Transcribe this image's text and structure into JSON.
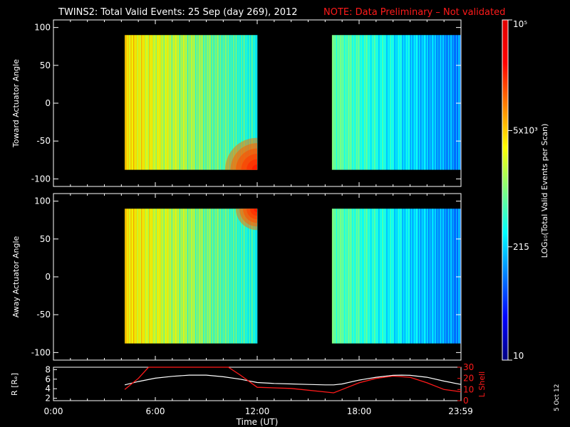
{
  "header": {
    "title": "TWINS2: Total Valid Events: 25 Sep (day 269), 2012",
    "note": "NOTE: Data Preliminary – Not validated"
  },
  "footer": {
    "side_stamp": "5 Oct 12"
  },
  "colors": {
    "background": "#000000",
    "note": "#ff1a1a",
    "r_line": "#ffffff",
    "l_line": "#ff1a1a"
  },
  "chart_data": [
    {
      "type": "heatmap",
      "ylabel": "Toward Actuator Angle",
      "x_range_hours": [
        0,
        24
      ],
      "ylim": [
        -110,
        110
      ],
      "yticks": [
        -100,
        -50,
        0,
        50,
        100
      ],
      "data_intervals_hours": [
        [
          4.2,
          12.0
        ],
        [
          16.4,
          24.0
        ]
      ],
      "angle_range": [
        -88,
        90
      ]
    },
    {
      "type": "heatmap",
      "ylabel": "Away Actuator Angle",
      "x_range_hours": [
        0,
        24
      ],
      "ylim": [
        -110,
        110
      ],
      "yticks": [
        -100,
        -50,
        0,
        50,
        100
      ],
      "data_intervals_hours": [
        [
          4.2,
          12.0
        ],
        [
          16.4,
          24.0
        ]
      ],
      "angle_range": [
        -88,
        90
      ]
    },
    {
      "type": "line",
      "ylabel_left": "R [Rₑ]",
      "ylabel_right": "L Shell",
      "xlabel": "Time (UT)",
      "xticks": [
        "0:00",
        "6:00",
        "12:00",
        "18:00",
        "23:59"
      ],
      "xtick_hours": [
        0,
        6,
        12,
        18,
        23.98
      ],
      "ylim_left": [
        1.5,
        8.5
      ],
      "yticks_left": [
        2,
        4,
        6,
        8
      ],
      "ylim_right": [
        0,
        30
      ],
      "yticks_right": [
        0,
        10,
        20,
        30
      ],
      "series": [
        {
          "axis": "left",
          "x": [
            4.2,
            5,
            6,
            7,
            8,
            9,
            10,
            11,
            12,
            13,
            14,
            15,
            16,
            16.5,
            17,
            18,
            19,
            20,
            20.5,
            21,
            22,
            23,
            24
          ],
          "y": [
            4.8,
            5.5,
            6.2,
            6.6,
            6.85,
            6.85,
            6.5,
            6.0,
            5.3,
            5.1,
            5.0,
            4.9,
            4.8,
            4.8,
            5.0,
            5.8,
            6.4,
            6.8,
            6.85,
            6.8,
            6.4,
            5.6,
            4.9
          ]
        },
        {
          "axis": "right",
          "x": [
            4.2,
            5.0,
            5.6,
            10.3,
            11.0,
            12.0,
            14.0,
            16.5,
            17.0,
            18.0,
            19.0,
            20.0,
            21.0,
            22.0,
            23.0,
            24.0
          ],
          "y": [
            10,
            20,
            31,
            31,
            23,
            12,
            11,
            7,
            10,
            16,
            20,
            22,
            21,
            16,
            10,
            8
          ]
        }
      ]
    }
  ],
  "colorbar": {
    "label": "LOG₁₀(Total Valid Events per Scan)",
    "ticks": [
      "10",
      "215",
      "5x10³",
      "10⁵"
    ],
    "tick_values": [
      10,
      215,
      5000,
      100000
    ],
    "range": [
      10,
      100000
    ],
    "colormap": [
      "#00007f",
      "#0000ff",
      "#007fff",
      "#00ffff",
      "#7fff7f",
      "#ffff00",
      "#ff7f00",
      "#ff0000",
      "#e00000"
    ]
  }
}
